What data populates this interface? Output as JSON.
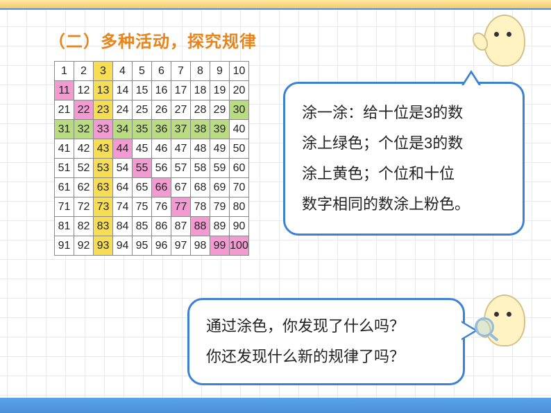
{
  "title": "（二）多种活动，探究规律",
  "grid": {
    "rows": 10,
    "cols": 10,
    "cell_size": 28,
    "border_color": "#888888",
    "colors": {
      "none": "#ffffff",
      "yellow": "#f6dd52",
      "pink": "#f49ad2",
      "green": "#b8dc7f"
    }
  },
  "bubble1_lines": [
    "涂一涂：给十位是3的数",
    "涂上绿色；个位是3的数",
    "涂上黄色；个位和十位",
    "数字相同的数涂上粉色。"
  ],
  "bubble2_lines": [
    "通过涂色，你发现了什么吗？",
    "你还发现什么新的规律了吗？"
  ],
  "bubble_style": {
    "border_color": "#3b82d4",
    "border_radius": 22,
    "background": "#ffffff",
    "font_size": 22,
    "line_height": 2
  },
  "title_style": {
    "color": "#e8841a",
    "font_size": 24,
    "font_weight": "bold"
  },
  "accent_bars": {
    "top_bg": "linear-gradient(#ffe8a0,#f5c96b)",
    "bottom_bg": "linear-gradient(#5aa3e8,#4a90d9)"
  },
  "cells": [
    {
      "n": 1
    },
    {
      "n": 2
    },
    {
      "n": 3,
      "c": "yellow"
    },
    {
      "n": 4
    },
    {
      "n": 5
    },
    {
      "n": 6
    },
    {
      "n": 7
    },
    {
      "n": 8
    },
    {
      "n": 9
    },
    {
      "n": 10
    },
    {
      "n": 11,
      "c": "pink"
    },
    {
      "n": 12
    },
    {
      "n": 13,
      "c": "yellow"
    },
    {
      "n": 14
    },
    {
      "n": 15
    },
    {
      "n": 16
    },
    {
      "n": 17
    },
    {
      "n": 18
    },
    {
      "n": 19
    },
    {
      "n": 20
    },
    {
      "n": 21
    },
    {
      "n": 22,
      "c": "pink"
    },
    {
      "n": 23,
      "c": "yellow"
    },
    {
      "n": 24
    },
    {
      "n": 25
    },
    {
      "n": 26
    },
    {
      "n": 27
    },
    {
      "n": 28
    },
    {
      "n": 29
    },
    {
      "n": 30,
      "c": "green"
    },
    {
      "n": 31,
      "c": "green"
    },
    {
      "n": 32,
      "c": "green"
    },
    {
      "n": 33,
      "c": "pink"
    },
    {
      "n": 34,
      "c": "green"
    },
    {
      "n": 35,
      "c": "green"
    },
    {
      "n": 36,
      "c": "green"
    },
    {
      "n": 37,
      "c": "green"
    },
    {
      "n": 38,
      "c": "green"
    },
    {
      "n": 39,
      "c": "green"
    },
    {
      "n": 40
    },
    {
      "n": 41
    },
    {
      "n": 42
    },
    {
      "n": 43,
      "c": "yellow"
    },
    {
      "n": 44,
      "c": "pink"
    },
    {
      "n": 45
    },
    {
      "n": 46
    },
    {
      "n": 47
    },
    {
      "n": 48
    },
    {
      "n": 49
    },
    {
      "n": 50
    },
    {
      "n": 51
    },
    {
      "n": 52
    },
    {
      "n": 53,
      "c": "yellow"
    },
    {
      "n": 54
    },
    {
      "n": 55,
      "c": "pink"
    },
    {
      "n": 56
    },
    {
      "n": 57
    },
    {
      "n": 58
    },
    {
      "n": 59
    },
    {
      "n": 60
    },
    {
      "n": 61
    },
    {
      "n": 62
    },
    {
      "n": 63,
      "c": "yellow"
    },
    {
      "n": 64
    },
    {
      "n": 65
    },
    {
      "n": 66,
      "c": "pink"
    },
    {
      "n": 67
    },
    {
      "n": 68
    },
    {
      "n": 69
    },
    {
      "n": 70
    },
    {
      "n": 71
    },
    {
      "n": 72
    },
    {
      "n": 73,
      "c": "yellow"
    },
    {
      "n": 74
    },
    {
      "n": 75
    },
    {
      "n": 76
    },
    {
      "n": 77,
      "c": "pink"
    },
    {
      "n": 78
    },
    {
      "n": 79
    },
    {
      "n": 80
    },
    {
      "n": 81
    },
    {
      "n": 82
    },
    {
      "n": 83,
      "c": "yellow"
    },
    {
      "n": 84
    },
    {
      "n": 85
    },
    {
      "n": 86
    },
    {
      "n": 87
    },
    {
      "n": 88,
      "c": "pink"
    },
    {
      "n": 89
    },
    {
      "n": 90
    },
    {
      "n": 91
    },
    {
      "n": 92
    },
    {
      "n": 93,
      "c": "yellow"
    },
    {
      "n": 94
    },
    {
      "n": 95
    },
    {
      "n": 96
    },
    {
      "n": 97
    },
    {
      "n": 98
    },
    {
      "n": 99,
      "c": "pink"
    },
    {
      "n": 100,
      "c": "pink"
    }
  ]
}
